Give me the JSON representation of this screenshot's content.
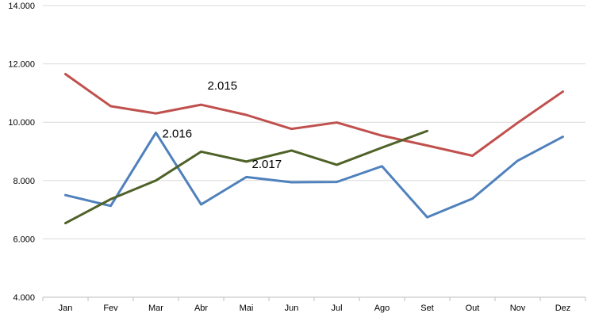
{
  "chart_data": {
    "type": "line",
    "title": "",
    "xlabel": "",
    "ylabel": "",
    "categories": [
      "Jan",
      "Fev",
      "Mar",
      "Abr",
      "Mai",
      "Jun",
      "Jul",
      "Ago",
      "Set",
      "Out",
      "Nov",
      "Dez"
    ],
    "ylim": [
      4000,
      14000
    ],
    "yticks": [
      4000,
      6000,
      8000,
      10000,
      12000,
      14000
    ],
    "ytick_labels": [
      "4.000",
      "6.000",
      "8.000",
      "10.000",
      "12.000",
      "14.000"
    ],
    "grid": true,
    "legend": "none",
    "series": [
      {
        "name": "2.015",
        "color": "#c0504d",
        "values": [
          11650,
          10550,
          10300,
          10600,
          10250,
          9770,
          9990,
          9540,
          9200,
          8850,
          9980,
          11050
        ]
      },
      {
        "name": "2.016",
        "color": "#4f81bd",
        "values": [
          7500,
          7130,
          9640,
          7180,
          8120,
          7940,
          7950,
          8490,
          6740,
          7380,
          8680,
          9500
        ]
      },
      {
        "name": "2.017",
        "color": "#4f6228",
        "values": [
          6540,
          7360,
          8000,
          8990,
          8650,
          9030,
          8540,
          9130,
          9700,
          null,
          null,
          null
        ]
      }
    ]
  }
}
